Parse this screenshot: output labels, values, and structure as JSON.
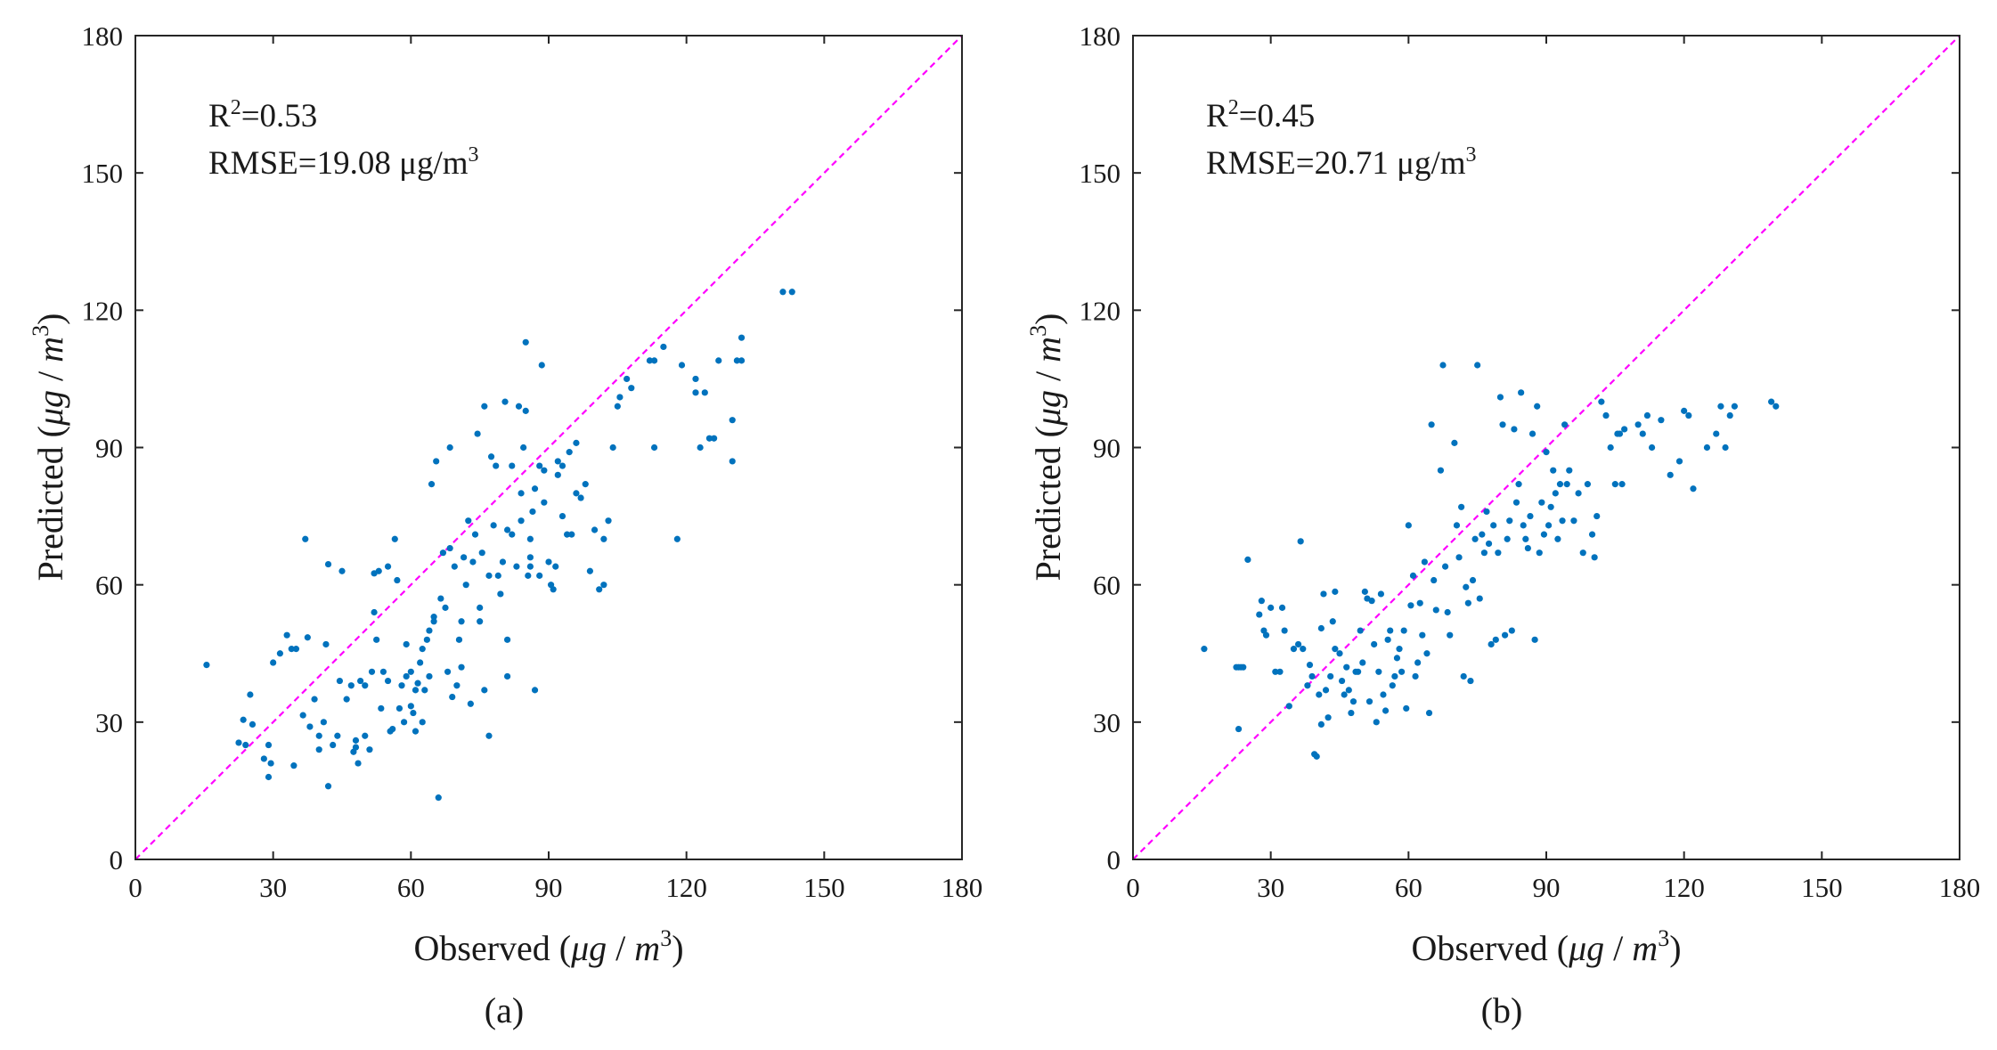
{
  "chart_data": [
    {
      "type": "scatter",
      "panel_label": "(a)",
      "xlabel_text": "Observed",
      "xlabel_unit": "(μg / m3)",
      "ylabel_text": "Predicted",
      "ylabel_unit": "(μg / m3)",
      "unit_parts": {
        "open": "(",
        "mu": "μ",
        "g": "g",
        "slash": " / ",
        "m": "m",
        "exp": "3",
        "close": ")"
      },
      "annotation_r2_prefix": "R",
      "annotation_r2_exp": "2",
      "annotation_r2_value": "=0.53",
      "annotation_rmse_text": "RMSE=19.08 μg/m",
      "annotation_rmse_exp": "3",
      "xlim": [
        0,
        180
      ],
      "ylim": [
        0,
        180
      ],
      "xticks": [
        "0",
        "30",
        "60",
        "90",
        "120",
        "150",
        "180"
      ],
      "yticks": [
        "0",
        "30",
        "60",
        "90",
        "120",
        "150",
        "180"
      ],
      "reference_line": "y = x",
      "marker_color": "#0072bd",
      "line_color": "#ff00ff",
      "points": [
        [
          15.5,
          42.5
        ],
        [
          22.5,
          25.5
        ],
        [
          23.5,
          30.5
        ],
        [
          24,
          25
        ],
        [
          25,
          36
        ],
        [
          25.5,
          29.5
        ],
        [
          28,
          22
        ],
        [
          29,
          25
        ],
        [
          29,
          18
        ],
        [
          29.5,
          21
        ],
        [
          30,
          43
        ],
        [
          31.5,
          45
        ],
        [
          33,
          49
        ],
        [
          34,
          46
        ],
        [
          34.5,
          20.5
        ],
        [
          35,
          46
        ],
        [
          36.5,
          31.5
        ],
        [
          37,
          70
        ],
        [
          37.5,
          48.5
        ],
        [
          38,
          29
        ],
        [
          39,
          35
        ],
        [
          40,
          27
        ],
        [
          40,
          24
        ],
        [
          41,
          30
        ],
        [
          41.5,
          47
        ],
        [
          42,
          16
        ],
        [
          42,
          64.5
        ],
        [
          43,
          25
        ],
        [
          44,
          27
        ],
        [
          44.5,
          39
        ],
        [
          45,
          63
        ],
        [
          46,
          35
        ],
        [
          47,
          38
        ],
        [
          47.5,
          23.5
        ],
        [
          48,
          24.5
        ],
        [
          48,
          26
        ],
        [
          48.5,
          21
        ],
        [
          49,
          39
        ],
        [
          50,
          27
        ],
        [
          50,
          38
        ],
        [
          51,
          24
        ],
        [
          51.5,
          41
        ],
        [
          52,
          62.5
        ],
        [
          52,
          54
        ],
        [
          52.5,
          48
        ],
        [
          53,
          63
        ],
        [
          53.5,
          33
        ],
        [
          54,
          41
        ],
        [
          55,
          39
        ],
        [
          55,
          64
        ],
        [
          55.5,
          28
        ],
        [
          56,
          28.5
        ],
        [
          56.5,
          70
        ],
        [
          57,
          61
        ],
        [
          57.5,
          33
        ],
        [
          58,
          38
        ],
        [
          58.5,
          30
        ],
        [
          59,
          47
        ],
        [
          59,
          40
        ],
        [
          60,
          33.5
        ],
        [
          60,
          41
        ],
        [
          60.5,
          32
        ],
        [
          61,
          37
        ],
        [
          61,
          28
        ],
        [
          61.5,
          38.5
        ],
        [
          62,
          43
        ],
        [
          62.5,
          30
        ],
        [
          62.5,
          46
        ],
        [
          63,
          37
        ],
        [
          63.5,
          48
        ],
        [
          64,
          50
        ],
        [
          64,
          40
        ],
        [
          64.5,
          82
        ],
        [
          65,
          52
        ],
        [
          65,
          53
        ],
        [
          65.5,
          87
        ],
        [
          66,
          13.5
        ],
        [
          66.5,
          57
        ],
        [
          67,
          67
        ],
        [
          67.5,
          55
        ],
        [
          68,
          41
        ],
        [
          68.5,
          90
        ],
        [
          68.5,
          68
        ],
        [
          69,
          35.5
        ],
        [
          69.5,
          64
        ],
        [
          70,
          38
        ],
        [
          70.5,
          48
        ],
        [
          71,
          42
        ],
        [
          71,
          52
        ],
        [
          71.5,
          66
        ],
        [
          72,
          60
        ],
        [
          72.5,
          74
        ],
        [
          73,
          34
        ],
        [
          73.5,
          65
        ],
        [
          74,
          71
        ],
        [
          74.5,
          93
        ],
        [
          75,
          55
        ],
        [
          75,
          52
        ],
        [
          75.5,
          67
        ],
        [
          76,
          99
        ],
        [
          76,
          37
        ],
        [
          77,
          62
        ],
        [
          77,
          27
        ],
        [
          77.5,
          88
        ],
        [
          78,
          73
        ],
        [
          78.5,
          86
        ],
        [
          79,
          62
        ],
        [
          79.5,
          58
        ],
        [
          80,
          65
        ],
        [
          80.5,
          100
        ],
        [
          81,
          72
        ],
        [
          81,
          48
        ],
        [
          81,
          40
        ],
        [
          82,
          86
        ],
        [
          82,
          71
        ],
        [
          83,
          64
        ],
        [
          83.5,
          99
        ],
        [
          84,
          80
        ],
        [
          84,
          74
        ],
        [
          84.5,
          90
        ],
        [
          85,
          98
        ],
        [
          85,
          113
        ],
        [
          85.5,
          62
        ],
        [
          86,
          66
        ],
        [
          86,
          70
        ],
        [
          86,
          64
        ],
        [
          86.5,
          76
        ],
        [
          87,
          81
        ],
        [
          87,
          37
        ],
        [
          88,
          62
        ],
        [
          88,
          86
        ],
        [
          88.5,
          108
        ],
        [
          89,
          78
        ],
        [
          89,
          85
        ],
        [
          90,
          65
        ],
        [
          90.5,
          60
        ],
        [
          91,
          59
        ],
        [
          91.5,
          64
        ],
        [
          92,
          87
        ],
        [
          92,
          84
        ],
        [
          93,
          86
        ],
        [
          93,
          75
        ],
        [
          94,
          71
        ],
        [
          94.5,
          89
        ],
        [
          95,
          71
        ],
        [
          96,
          80
        ],
        [
          96,
          91
        ],
        [
          97,
          79
        ],
        [
          98,
          82
        ],
        [
          99,
          63
        ],
        [
          100,
          72
        ],
        [
          101,
          59
        ],
        [
          102,
          70
        ],
        [
          102,
          60
        ],
        [
          103,
          74
        ],
        [
          104,
          90
        ],
        [
          105,
          99
        ],
        [
          105.5,
          101
        ],
        [
          107,
          105
        ],
        [
          108,
          103
        ],
        [
          112,
          109
        ],
        [
          113,
          109
        ],
        [
          113,
          90
        ],
        [
          115,
          112
        ],
        [
          118,
          70
        ],
        [
          119,
          108
        ],
        [
          122,
          105
        ],
        [
          122,
          102
        ],
        [
          123,
          90
        ],
        [
          124,
          102
        ],
        [
          125,
          92
        ],
        [
          126,
          92
        ],
        [
          127,
          109
        ],
        [
          130,
          87
        ],
        [
          130,
          96
        ],
        [
          131,
          109
        ],
        [
          132,
          109
        ],
        [
          132,
          114
        ],
        [
          141,
          124
        ],
        [
          143,
          124
        ]
      ]
    },
    {
      "type": "scatter",
      "panel_label": "(b)",
      "xlabel_text": "Observed",
      "xlabel_unit": "(μg / m3)",
      "ylabel_text": "Predicted",
      "ylabel_unit": "(μg / m3)",
      "unit_parts": {
        "open": "(",
        "mu": "μ",
        "g": "g",
        "slash": " / ",
        "m": "m",
        "exp": "3",
        "close": ")"
      },
      "annotation_r2_prefix": "R",
      "annotation_r2_exp": "2",
      "annotation_r2_value": "=0.45",
      "annotation_rmse_text": "RMSE=20.71 μg/m",
      "annotation_rmse_exp": "3",
      "xlim": [
        0,
        180
      ],
      "ylim": [
        0,
        180
      ],
      "xticks": [
        "0",
        "30",
        "60",
        "90",
        "120",
        "150",
        "180"
      ],
      "yticks": [
        "0",
        "30",
        "60",
        "90",
        "120",
        "150",
        "180"
      ],
      "reference_line": "y = x",
      "marker_color": "#0072bd",
      "line_color": "#ff00ff",
      "points": [
        [
          15.5,
          46
        ],
        [
          22.5,
          42
        ],
        [
          23,
          42
        ],
        [
          23.5,
          42
        ],
        [
          23,
          28.5
        ],
        [
          24,
          42
        ],
        [
          25,
          65.5
        ],
        [
          27.5,
          53.5
        ],
        [
          28,
          56.5
        ],
        [
          28.5,
          50
        ],
        [
          29,
          49
        ],
        [
          30,
          55
        ],
        [
          31,
          41
        ],
        [
          32,
          41
        ],
        [
          32.5,
          55
        ],
        [
          33,
          50
        ],
        [
          34,
          33.5
        ],
        [
          35,
          46
        ],
        [
          36,
          47
        ],
        [
          36.5,
          69.5
        ],
        [
          37,
          46
        ],
        [
          38,
          38
        ],
        [
          38.5,
          42.5
        ],
        [
          39,
          40
        ],
        [
          39.5,
          23
        ],
        [
          40,
          22.5
        ],
        [
          40.5,
          36
        ],
        [
          41,
          50.5
        ],
        [
          41,
          29.5
        ],
        [
          41.5,
          58
        ],
        [
          42,
          37
        ],
        [
          42.5,
          31
        ],
        [
          43,
          40
        ],
        [
          43.5,
          52
        ],
        [
          44,
          58.5
        ],
        [
          44,
          46
        ],
        [
          45,
          45
        ],
        [
          45.5,
          39
        ],
        [
          46,
          36
        ],
        [
          46.5,
          42
        ],
        [
          47,
          37
        ],
        [
          47.5,
          32
        ],
        [
          48,
          34.5
        ],
        [
          48.5,
          41
        ],
        [
          49,
          41
        ],
        [
          49.5,
          50
        ],
        [
          50,
          43
        ],
        [
          50.5,
          58.5
        ],
        [
          51,
          57
        ],
        [
          51.5,
          34.5
        ],
        [
          52,
          56.5
        ],
        [
          52.5,
          47
        ],
        [
          53,
          30
        ],
        [
          53.5,
          41
        ],
        [
          54,
          58
        ],
        [
          54.5,
          36
        ],
        [
          55,
          32.5
        ],
        [
          55.5,
          48
        ],
        [
          56,
          50
        ],
        [
          56.5,
          38
        ],
        [
          57,
          40
        ],
        [
          57.5,
          44
        ],
        [
          58,
          46
        ],
        [
          58.5,
          41
        ],
        [
          59,
          50
        ],
        [
          59.5,
          33
        ],
        [
          60,
          73
        ],
        [
          60.5,
          55.5
        ],
        [
          61,
          62
        ],
        [
          61.5,
          40
        ],
        [
          62,
          43
        ],
        [
          62.5,
          56
        ],
        [
          63,
          49
        ],
        [
          63.5,
          65
        ],
        [
          64,
          45
        ],
        [
          64.5,
          32
        ],
        [
          65,
          95
        ],
        [
          65.5,
          61
        ],
        [
          66,
          54.5
        ],
        [
          67,
          85
        ],
        [
          67.5,
          108
        ],
        [
          68,
          64
        ],
        [
          68.5,
          54
        ],
        [
          69,
          49
        ],
        [
          70,
          91
        ],
        [
          70.5,
          73
        ],
        [
          71,
          66
        ],
        [
          71.5,
          77
        ],
        [
          72,
          40
        ],
        [
          72.5,
          59.5
        ],
        [
          73,
          56
        ],
        [
          73.5,
          39
        ],
        [
          74,
          61
        ],
        [
          74.5,
          70
        ],
        [
          75,
          108
        ],
        [
          75.5,
          57
        ],
        [
          76,
          71
        ],
        [
          76.5,
          67
        ],
        [
          77,
          76
        ],
        [
          77.5,
          69
        ],
        [
          78,
          47
        ],
        [
          78.5,
          73
        ],
        [
          79,
          48
        ],
        [
          79.5,
          67
        ],
        [
          80,
          101
        ],
        [
          80.5,
          95
        ],
        [
          81,
          49
        ],
        [
          81.5,
          70
        ],
        [
          82,
          74
        ],
        [
          82.5,
          50
        ],
        [
          83,
          94
        ],
        [
          83.5,
          78
        ],
        [
          84,
          82
        ],
        [
          84.5,
          102
        ],
        [
          85,
          73
        ],
        [
          85.5,
          70
        ],
        [
          86,
          68
        ],
        [
          86.5,
          75
        ],
        [
          87,
          93
        ],
        [
          87.5,
          48
        ],
        [
          88,
          99
        ],
        [
          88.5,
          67
        ],
        [
          89,
          78
        ],
        [
          89.5,
          71
        ],
        [
          90,
          89
        ],
        [
          90.5,
          73
        ],
        [
          91,
          77
        ],
        [
          91.5,
          85
        ],
        [
          92,
          80
        ],
        [
          92.5,
          70
        ],
        [
          93,
          82
        ],
        [
          93.5,
          74
        ],
        [
          94,
          95
        ],
        [
          94.5,
          82
        ],
        [
          95,
          85
        ],
        [
          96,
          74
        ],
        [
          97,
          80
        ],
        [
          98,
          67
        ],
        [
          99,
          82
        ],
        [
          100,
          71
        ],
        [
          100.5,
          66
        ],
        [
          101,
          75
        ],
        [
          102,
          100
        ],
        [
          103,
          97
        ],
        [
          104,
          90
        ],
        [
          105,
          82
        ],
        [
          105.5,
          93
        ],
        [
          106,
          93
        ],
        [
          106.5,
          82
        ],
        [
          107,
          94
        ],
        [
          110,
          95
        ],
        [
          111,
          93
        ],
        [
          112,
          97
        ],
        [
          113,
          90
        ],
        [
          115,
          96
        ],
        [
          117,
          84
        ],
        [
          119,
          87
        ],
        [
          120,
          98
        ],
        [
          121,
          97
        ],
        [
          122,
          81
        ],
        [
          125,
          90
        ],
        [
          127,
          93
        ],
        [
          128,
          99
        ],
        [
          129,
          90
        ],
        [
          130,
          97
        ],
        [
          131,
          99
        ],
        [
          139,
          100
        ],
        [
          140,
          99
        ]
      ]
    }
  ]
}
